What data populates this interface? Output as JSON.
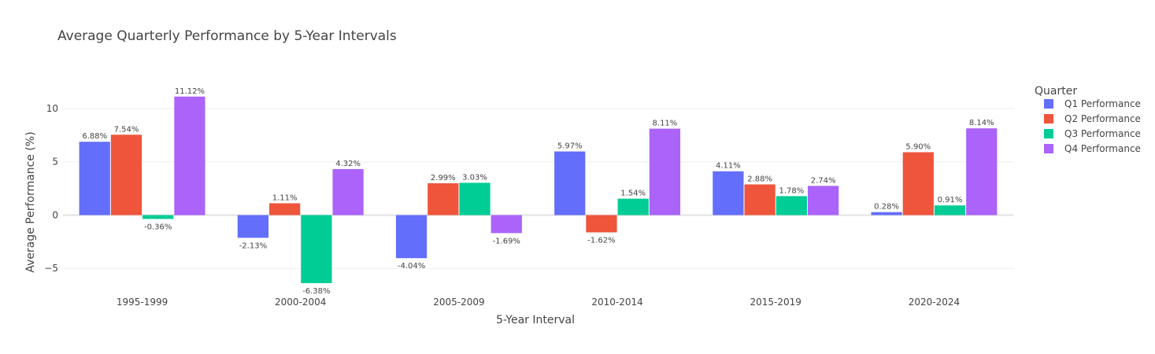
{
  "chart_data": {
    "type": "bar",
    "title": "Average Quarterly Performance by 5-Year Intervals",
    "xlabel": "5-Year Interval",
    "ylabel": "Average Performance (%)",
    "categories": [
      "1995-1999",
      "2000-2004",
      "2005-2009",
      "2010-2014",
      "2015-2019",
      "2020-2024"
    ],
    "series": [
      {
        "name": "Q1 Performance",
        "color": "#636efa",
        "values": [
          6.88,
          -2.13,
          -4.04,
          5.97,
          4.11,
          0.28
        ],
        "labels": [
          "6.88%",
          "-2.13%",
          "-4.04%",
          "5.97%",
          "4.11%",
          "0.28%"
        ]
      },
      {
        "name": "Q2 Performance",
        "color": "#ef553b",
        "values": [
          7.54,
          1.11,
          2.99,
          -1.62,
          2.88,
          5.9
        ],
        "labels": [
          "7.54%",
          "1.11%",
          "2.99%",
          "-1.62%",
          "2.88%",
          "5.90%"
        ]
      },
      {
        "name": "Q3 Performance",
        "color": "#00cc96",
        "values": [
          -0.36,
          -6.38,
          3.03,
          1.54,
          1.78,
          0.91
        ],
        "labels": [
          "-0.36%",
          "-6.38%",
          "3.03%",
          "1.54%",
          "1.78%",
          "0.91%"
        ]
      },
      {
        "name": "Q4 Performance",
        "color": "#ab63fa",
        "values": [
          11.12,
          4.32,
          -1.69,
          8.11,
          2.74,
          8.14
        ],
        "labels": [
          "11.12%",
          "4.32%",
          "-1.69%",
          "8.11%",
          "2.74%",
          "8.14%"
        ]
      }
    ],
    "ylim": [
      -7.2,
      12.8
    ],
    "yticks": [
      -5,
      0,
      5,
      10
    ],
    "ytick_labels": [
      "−5",
      "0",
      "5",
      "10"
    ],
    "legend": {
      "title": "Quarter",
      "position": "right"
    },
    "grid": true
  }
}
